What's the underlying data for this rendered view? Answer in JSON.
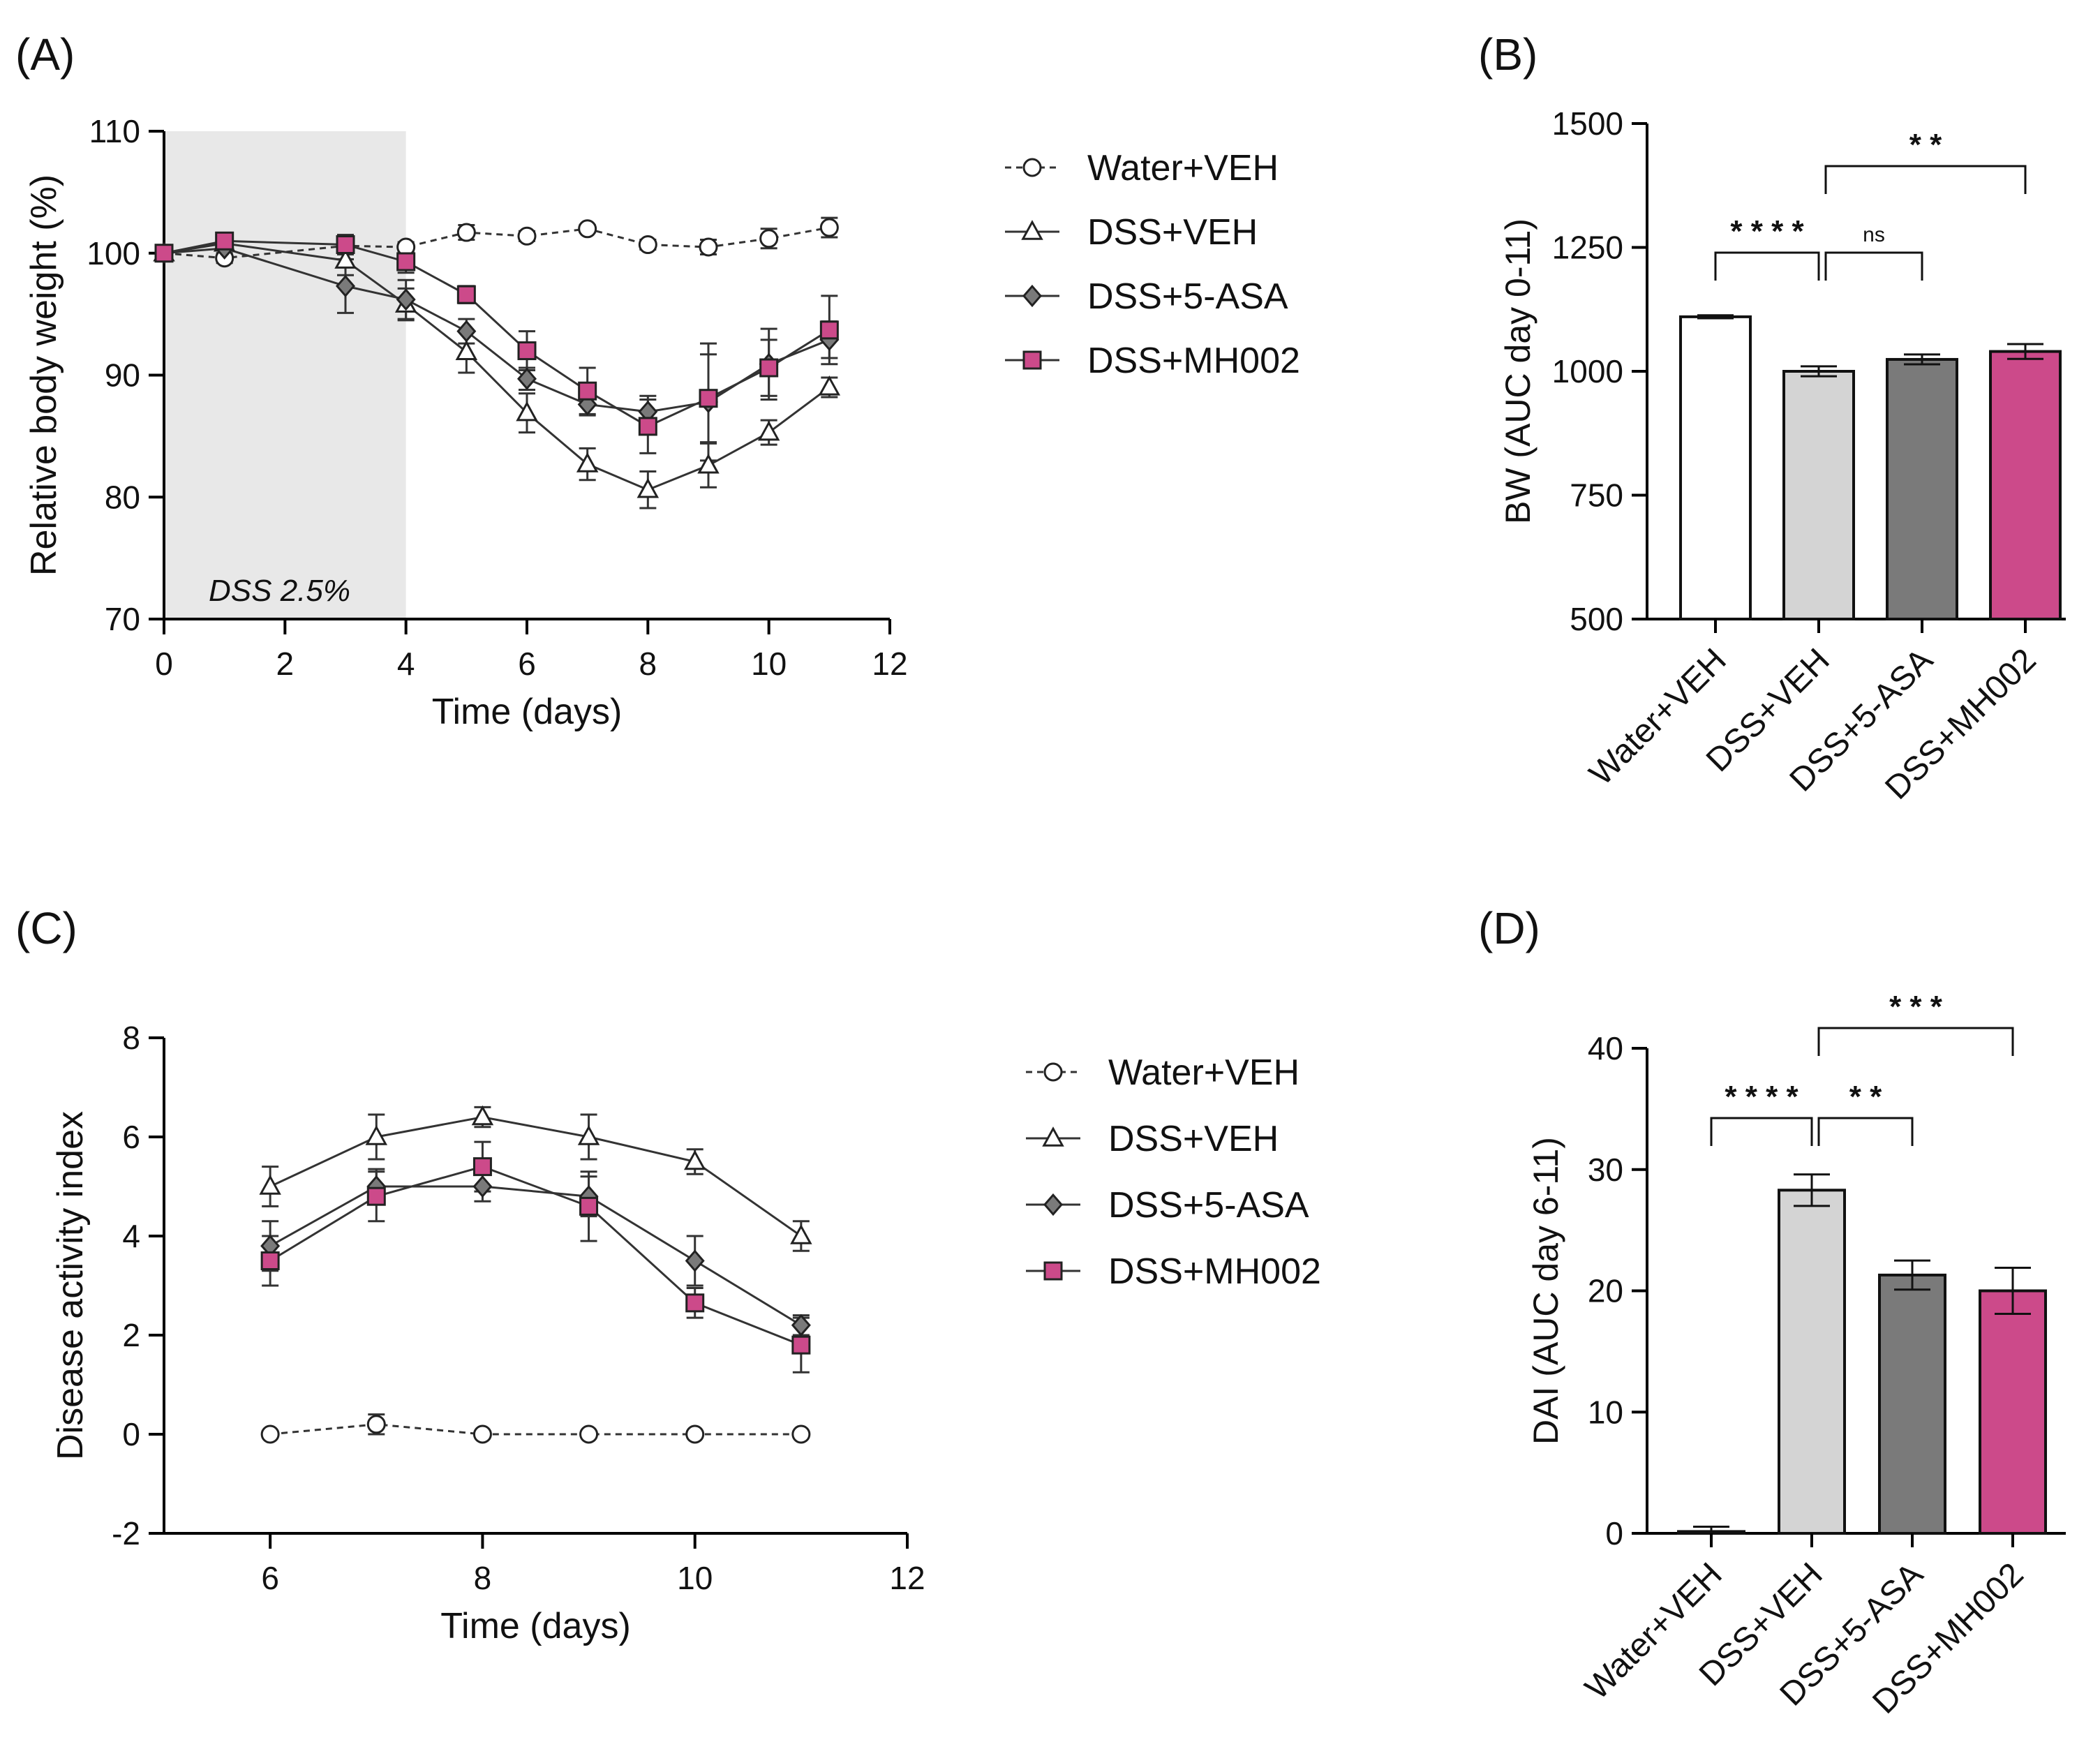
{
  "colors": {
    "axis": "#000000",
    "water_fill": "#ffffff",
    "dss_veh_fill": "#d4d4d4",
    "dss_5asa_fill": "#7a7a7a",
    "dss_mh002_fill": "#cc4a8a",
    "shade": "#e8e8e8"
  },
  "chart_data": [
    {
      "panel": "(A)",
      "type": "line",
      "xlabel": "Time (days)",
      "ylabel": "Relative body weight (%)",
      "xlim": [
        0,
        12
      ],
      "ylim": [
        70,
        110
      ],
      "xticks": [
        "0",
        "2",
        "4",
        "6",
        "8",
        "10",
        "12"
      ],
      "yticks": [
        "70",
        "80",
        "90",
        "100",
        "110"
      ],
      "shaded_region": {
        "x": [
          0,
          4
        ],
        "label": "DSS 2.5%"
      },
      "series": [
        {
          "name": "Water+VEH",
          "marker": "circle",
          "dashed": true,
          "x": [
            0,
            1,
            3,
            4,
            5,
            6,
            7,
            8,
            9,
            10,
            11
          ],
          "y": [
            100,
            99.6,
            100.6,
            100.5,
            101.7,
            101.4,
            102,
            100.7,
            100.5,
            101.2,
            102.1
          ],
          "err": [
            0.3,
            0.4,
            0.5,
            0.4,
            0.6,
            0.4,
            0.3,
            0.4,
            0.6,
            0.8,
            0.8
          ]
        },
        {
          "name": "DSS+VEH",
          "marker": "triangle",
          "dashed": false,
          "x": [
            0,
            1,
            3,
            4,
            5,
            6,
            7,
            8,
            9,
            10,
            11
          ],
          "y": [
            100,
            100.8,
            99.4,
            95.8,
            91.9,
            86.9,
            82.7,
            80.6,
            82.6,
            85.3,
            89
          ],
          "err": [
            0.3,
            0.5,
            1.2,
            1.3,
            1.7,
            1.6,
            1.3,
            1.5,
            1.8,
            1.0,
            0.8
          ]
        },
        {
          "name": "DSS+5-ASA",
          "marker": "diamond",
          "dashed": false,
          "x": [
            0,
            1,
            3,
            4,
            5,
            6,
            7,
            8,
            9,
            10,
            11
          ],
          "y": [
            100,
            100.4,
            97.3,
            96.2,
            93.6,
            89.7,
            87.6,
            87,
            87.8,
            90.9,
            92.9
          ],
          "err": [
            0.3,
            0.6,
            2.2,
            1.6,
            1.0,
            0.9,
            0.9,
            1.3,
            4.8,
            2.9,
            1.5
          ]
        },
        {
          "name": "DSS+MH002",
          "marker": "square",
          "dashed": false,
          "x": [
            0,
            1,
            3,
            4,
            5,
            6,
            7,
            8,
            9,
            10,
            11
          ],
          "y": [
            100,
            101,
            100.7,
            99.3,
            96.6,
            92,
            88.7,
            85.8,
            88.1,
            90.6,
            93.7
          ],
          "err": [
            0.3,
            0.5,
            0.8,
            0.9,
            0.7,
            1.6,
            1.9,
            2.2,
            3.6,
            2.3,
            2.8
          ]
        }
      ]
    },
    {
      "panel": "(B)",
      "type": "bar",
      "ylabel": "BW (AUC day 0-11)",
      "ylim": [
        500,
        1500
      ],
      "yticks": [
        "500",
        "750",
        "1000",
        "1250",
        "1500"
      ],
      "categories": [
        "Water+VEH",
        "DSS+VEH",
        "DSS+5-ASA",
        "DSS+MH002"
      ],
      "values": [
        1110,
        1000,
        1024,
        1040
      ],
      "errors": [
        3,
        10,
        10,
        15
      ],
      "significance": [
        {
          "from": 0,
          "to": 1,
          "label": "* * * *"
        },
        {
          "from": 1,
          "to": 2,
          "label": "ns"
        },
        {
          "from": 1,
          "to": 3,
          "label": "* *"
        }
      ]
    },
    {
      "panel": "(C)",
      "type": "line",
      "xlabel": "Time (days)",
      "ylabel": "Disease activity index",
      "xlim": [
        5,
        12
      ],
      "ylim": [
        -2,
        8
      ],
      "xticks": [
        "6",
        "8",
        "10",
        "12"
      ],
      "yticks": [
        "-2",
        "0",
        "2",
        "4",
        "6",
        "8"
      ],
      "series": [
        {
          "name": "Water+VEH",
          "marker": "circle",
          "dashed": true,
          "x": [
            6,
            7,
            8,
            9,
            10,
            11
          ],
          "y": [
            0,
            0.2,
            0,
            0,
            0,
            0
          ],
          "err": [
            0,
            0.2,
            0,
            0,
            0,
            0
          ]
        },
        {
          "name": "DSS+VEH",
          "marker": "triangle",
          "dashed": false,
          "x": [
            6,
            7,
            8,
            9,
            10,
            11
          ],
          "y": [
            5,
            6,
            6.4,
            6,
            5.5,
            4
          ],
          "err": [
            0.4,
            0.45,
            0.2,
            0.45,
            0.25,
            0.3
          ]
        },
        {
          "name": "DSS+5-ASA",
          "marker": "diamond",
          "dashed": false,
          "x": [
            6,
            7,
            8,
            9,
            10,
            11
          ],
          "y": [
            3.8,
            5,
            5,
            4.8,
            3.5,
            2.2
          ],
          "err": [
            0.5,
            0.35,
            0.3,
            0.4,
            0.5,
            0.2
          ]
        },
        {
          "name": "DSS+MH002",
          "marker": "square",
          "dashed": false,
          "x": [
            6,
            7,
            8,
            9,
            10,
            11
          ],
          "y": [
            3.5,
            4.8,
            5.4,
            4.6,
            2.65,
            1.8
          ],
          "err": [
            0.5,
            0.5,
            0.5,
            0.7,
            0.3,
            0.55
          ]
        }
      ]
    },
    {
      "panel": "(D)",
      "type": "bar",
      "ylabel": "DAI (AUC day 6-11)",
      "ylim": [
        0,
        40
      ],
      "yticks": [
        "0",
        "10",
        "20",
        "30",
        "40"
      ],
      "categories": [
        "Water+VEH",
        "DSS+VEH",
        "DSS+5-ASA",
        "DSS+MH002"
      ],
      "values": [
        0.15,
        28.3,
        21.3,
        20
      ],
      "errors": [
        0.4,
        1.3,
        1.2,
        1.9
      ],
      "significance": [
        {
          "from": 0,
          "to": 1,
          "label": "* * * *"
        },
        {
          "from": 1,
          "to": 2,
          "label": "* *"
        },
        {
          "from": 1,
          "to": 3,
          "label": "* * *"
        }
      ]
    }
  ]
}
